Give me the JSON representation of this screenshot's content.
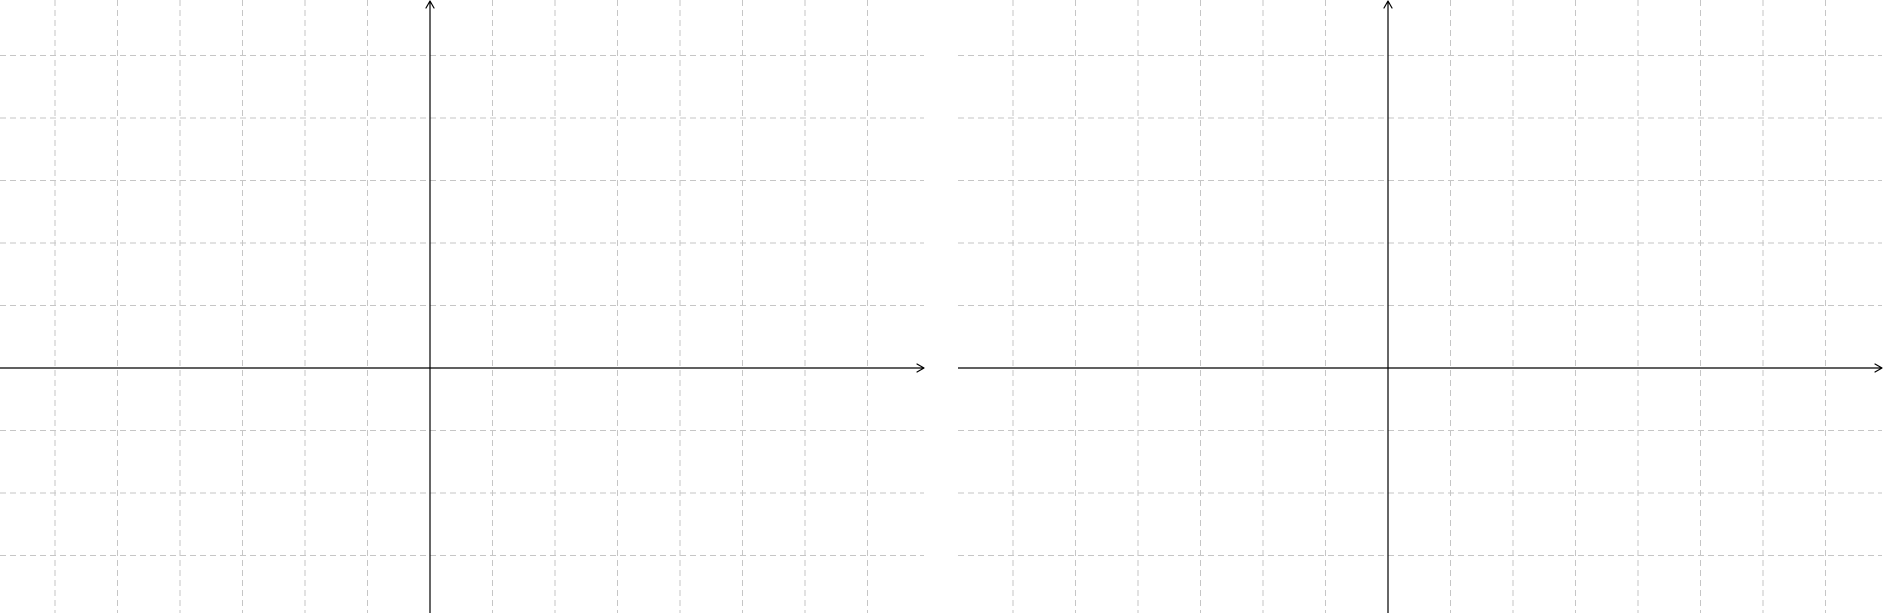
{
  "title": "",
  "colors": {
    "background": "#ffffff",
    "grid": "#c6c6c6",
    "axis": "#000000"
  },
  "panels": [
    {
      "name": "left-coordinate-grid",
      "grid": true,
      "grid_style": "dashed",
      "x_range": [
        -7,
        8
      ],
      "y_range": [
        -4,
        6
      ],
      "x_axis_arrow": true,
      "y_axis_arrow": true
    },
    {
      "name": "right-coordinate-grid",
      "grid": true,
      "grid_style": "dashed",
      "x_range": [
        -7,
        8
      ],
      "y_range": [
        -4,
        6
      ],
      "x_axis_arrow": true,
      "y_axis_arrow": true
    }
  ]
}
